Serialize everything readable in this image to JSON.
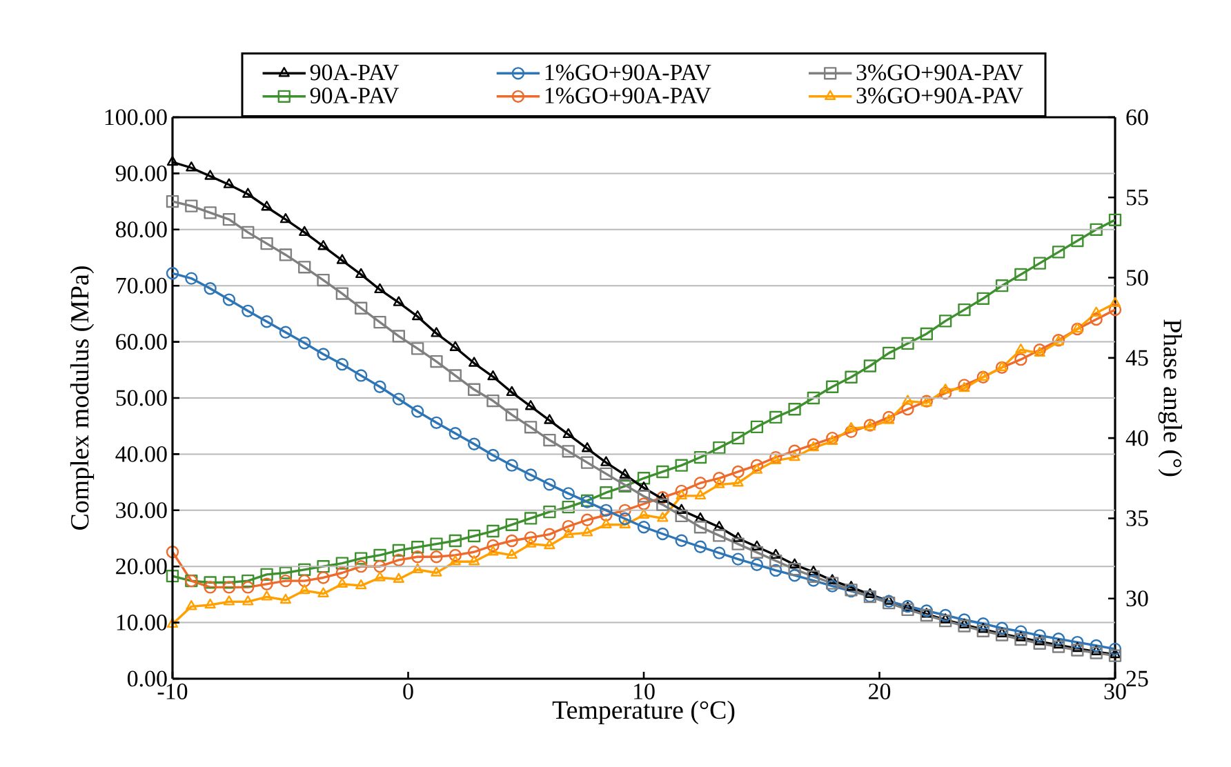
{
  "chart_data": {
    "type": "line",
    "xlabel": "Temperature (°C)",
    "ylabel": "Complex modulus (MPa)",
    "y2label": "Phase angle (°)",
    "x": [
      -10,
      -9.2,
      -8.4,
      -7.6,
      -6.8,
      -6,
      -5.2,
      -4.4,
      -3.6,
      -2.8,
      -2,
      -1.2,
      -0.4,
      0.4,
      1.2,
      2,
      2.8,
      3.6,
      4.4,
      5.2,
      6,
      6.8,
      7.6,
      8.4,
      9.2,
      10,
      10.8,
      11.6,
      12.4,
      13.2,
      14,
      14.8,
      15.6,
      16.4,
      17.2,
      18,
      18.8,
      19.6,
      20.4,
      21.2,
      22,
      22.8,
      23.6,
      24.4,
      25.2,
      26,
      26.8,
      27.6,
      28.4,
      29.2,
      30
    ],
    "series": [
      {
        "name": "90A-PAV",
        "color": "#000000",
        "marker": "triangle",
        "values": [
          92.0,
          91.0,
          89.5,
          88.0,
          86.3,
          84.0,
          81.8,
          79.5,
          77.0,
          74.5,
          72.0,
          69.3,
          67.0,
          64.5,
          61.5,
          59.0,
          56.2,
          53.8,
          51.0,
          48.5,
          46.0,
          43.5,
          41.0,
          38.5,
          36.3,
          34.0,
          32.0,
          30.0,
          28.5,
          27.0,
          25.0,
          23.5,
          22.0,
          20.3,
          19.0,
          17.5,
          16.3,
          15.0,
          13.8,
          12.6,
          11.5,
          10.5,
          9.6,
          8.8,
          8.0,
          7.3,
          6.6,
          6.0,
          5.4,
          4.8,
          4.3
        ]
      },
      {
        "name": "1%GO+90A-PAV",
        "color": "#2e75b6",
        "marker": "circle",
        "values": [
          72.2,
          71.3,
          69.5,
          67.5,
          65.5,
          63.6,
          61.7,
          59.8,
          57.8,
          56.0,
          54.0,
          52.0,
          49.8,
          47.6,
          45.6,
          43.7,
          41.8,
          39.8,
          38.0,
          36.3,
          34.6,
          33.0,
          31.5,
          30.0,
          28.5,
          27.0,
          25.8,
          24.6,
          23.5,
          22.4,
          21.3,
          20.3,
          19.3,
          18.4,
          17.5,
          16.5,
          15.6,
          14.7,
          13.8,
          12.9,
          12.1,
          11.3,
          10.5,
          9.8,
          9.0,
          8.4,
          7.7,
          7.1,
          6.5,
          5.9,
          5.3
        ]
      },
      {
        "name": "3%GO+90A-PAV",
        "color": "#7f7f7f",
        "marker": "square",
        "values": [
          85.0,
          84.2,
          83.0,
          81.8,
          79.5,
          77.5,
          75.5,
          73.3,
          71.0,
          68.6,
          66.0,
          63.5,
          61.0,
          58.8,
          56.5,
          54.0,
          51.5,
          49.5,
          47.0,
          44.8,
          42.5,
          40.5,
          38.5,
          36.5,
          34.5,
          32.5,
          31.0,
          29.0,
          27.0,
          25.5,
          24.0,
          22.5,
          21.0,
          19.5,
          18.2,
          17.0,
          15.8,
          14.6,
          13.5,
          12.3,
          11.3,
          10.3,
          9.4,
          8.5,
          7.8,
          7.0,
          6.3,
          5.7,
          5.1,
          4.6,
          4.1
        ]
      },
      {
        "name": "90A-PAV",
        "color": "#3e8f2e",
        "marker": "square",
        "axis": "y2",
        "values": [
          31.4,
          31.1,
          31.0,
          31.0,
          31.1,
          31.5,
          31.6,
          31.8,
          32.0,
          32.2,
          32.5,
          32.7,
          33.0,
          33.2,
          33.4,
          33.6,
          33.9,
          34.2,
          34.6,
          35.0,
          35.4,
          35.7,
          36.1,
          36.6,
          37.0,
          37.5,
          37.9,
          38.3,
          38.8,
          39.4,
          40.0,
          40.7,
          41.3,
          41.8,
          42.5,
          43.2,
          43.8,
          44.5,
          45.3,
          45.9,
          46.5,
          47.3,
          48.0,
          48.7,
          49.5,
          50.2,
          50.9,
          51.6,
          52.3,
          53.0,
          53.6
        ]
      },
      {
        "name": "1%GO+90A-PAV",
        "color": "#ed6a2a",
        "marker": "circle",
        "axis": "y2",
        "values": [
          32.9,
          31.1,
          30.7,
          30.7,
          30.7,
          30.9,
          31.1,
          31.1,
          31.3,
          31.6,
          32.0,
          32.0,
          32.4,
          32.6,
          32.6,
          32.7,
          32.9,
          33.3,
          33.6,
          33.8,
          34.0,
          34.5,
          34.9,
          35.2,
          35.5,
          35.9,
          36.3,
          36.7,
          37.2,
          37.5,
          37.9,
          38.3,
          38.8,
          39.2,
          39.6,
          40.0,
          40.4,
          40.8,
          41.3,
          41.8,
          42.3,
          42.8,
          43.3,
          43.8,
          44.4,
          44.9,
          45.5,
          46.1,
          46.8,
          47.4,
          48.0
        ]
      },
      {
        "name": "3%GO+90A-PAV",
        "color": "#ffa000",
        "marker": "triangle",
        "axis": "y2",
        "values": [
          28.4,
          29.5,
          29.6,
          29.8,
          29.8,
          30.1,
          29.9,
          30.5,
          30.3,
          30.9,
          30.8,
          31.3,
          31.2,
          31.8,
          31.6,
          32.3,
          32.3,
          32.9,
          32.7,
          33.4,
          33.3,
          34.0,
          34.1,
          34.6,
          34.6,
          35.2,
          35.0,
          36.4,
          36.4,
          37.1,
          37.2,
          38.0,
          38.6,
          38.8,
          39.4,
          39.8,
          40.6,
          40.7,
          41.1,
          42.3,
          42.2,
          43.0,
          43.1,
          43.8,
          44.4,
          45.5,
          45.3,
          46.0,
          46.8,
          47.8,
          48.4
        ]
      }
    ],
    "xlim": [
      -10,
      30
    ],
    "xticks": [
      -10,
      0,
      10,
      20,
      30
    ],
    "ylim": [
      0,
      100
    ],
    "yticks": [
      {
        "value": 0,
        "label": "0.00"
      },
      {
        "value": 10,
        "label": "10.00"
      },
      {
        "value": 20,
        "label": "20.00"
      },
      {
        "value": 30,
        "label": "30.00"
      },
      {
        "value": 40,
        "label": "40.00"
      },
      {
        "value": 50,
        "label": "50.00"
      },
      {
        "value": 60,
        "label": "60.00"
      },
      {
        "value": 70,
        "label": "70.00"
      },
      {
        "value": 80,
        "label": "80.00"
      },
      {
        "value": 90,
        "label": "90.00"
      },
      {
        "value": 100,
        "label": "100.00"
      }
    ],
    "y2lim": [
      25,
      60
    ],
    "y2ticks": [
      25,
      30,
      35,
      40,
      45,
      50,
      55,
      60
    ],
    "grid": "y",
    "legend": "top"
  }
}
